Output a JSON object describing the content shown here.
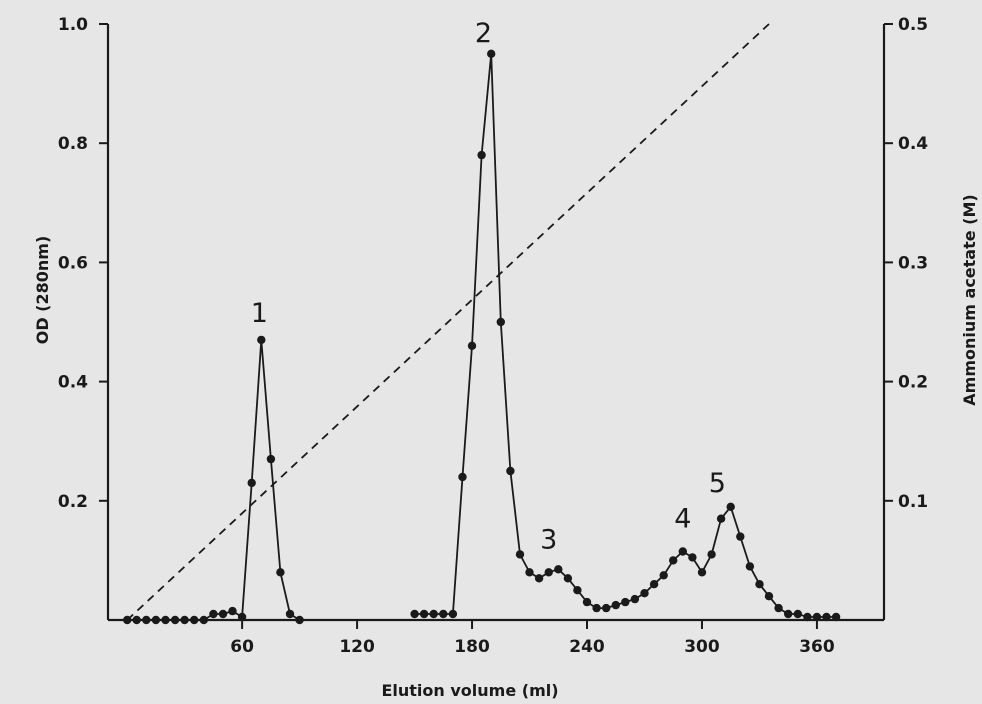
{
  "chart_data": {
    "type": "line",
    "xlabel": "Elution volume (ml)",
    "ylabel": "OD (280nm)",
    "y2label": "Ammonium acetate (M)",
    "xlim": [
      -10,
      395
    ],
    "ylim": [
      0,
      1.0
    ],
    "y2lim": [
      0,
      0.5
    ],
    "x_ticks": [
      "60",
      "120",
      "180",
      "240",
      "300",
      "360"
    ],
    "y_ticks": [
      "0.2",
      "0.4",
      "0.6",
      "0.8",
      "1.0"
    ],
    "y2_ticks": [
      "0.1",
      "0.2",
      "0.3",
      "0.4",
      "0.5"
    ],
    "series": [
      {
        "style": "solid line with circle markers",
        "axis": "left",
        "x": [
          0,
          5,
          10,
          15,
          20,
          25,
          30,
          35,
          40,
          45,
          50,
          55,
          60,
          65,
          70,
          75,
          80,
          85,
          90,
          150,
          155,
          160,
          165,
          170,
          175,
          180,
          185,
          190,
          195,
          200,
          205,
          210,
          215,
          220,
          225,
          230,
          235,
          240,
          245,
          250,
          255,
          260,
          265,
          270,
          275,
          280,
          285,
          290,
          295,
          300,
          305,
          310,
          315,
          320,
          325,
          330,
          335,
          340,
          345,
          350,
          355,
          360,
          365,
          370
        ],
        "y": [
          0,
          0,
          0,
          0,
          0,
          0,
          0,
          0,
          0,
          0.01,
          0.01,
          0.015,
          0.005,
          0.23,
          0.47,
          0.27,
          0.08,
          0.01,
          0,
          0.01,
          0.01,
          0.01,
          0.01,
          0.01,
          0.24,
          0.46,
          0.78,
          0.95,
          0.5,
          0.25,
          0.11,
          0.08,
          0.07,
          0.08,
          0.085,
          0.07,
          0.05,
          0.03,
          0.02,
          0.02,
          0.025,
          0.03,
          0.035,
          0.045,
          0.06,
          0.075,
          0.1,
          0.115,
          0.105,
          0.08,
          0.11,
          0.17,
          0.19,
          0.14,
          0.09,
          0.06,
          0.04,
          0.02,
          0.01,
          0.01,
          0.005,
          0.005,
          0.005,
          0.005
        ]
      },
      {
        "style": "dashed line",
        "axis": "right",
        "x": [
          0,
          335
        ],
        "y": [
          0,
          0.5
        ]
      }
    ],
    "annotations": [
      {
        "text": "1",
        "x": 69,
        "y": 0.5
      },
      {
        "text": "2",
        "x": 186,
        "y": 0.97
      },
      {
        "text": "3",
        "x": 220,
        "y": 0.12
      },
      {
        "text": "4",
        "x": 290,
        "y": 0.155
      },
      {
        "text": "5",
        "x": 308,
        "y": 0.215
      }
    ],
    "grid": false,
    "legend": "none"
  },
  "colors": {
    "background": "#e6e6e6",
    "ink": "#1a1a1a"
  }
}
